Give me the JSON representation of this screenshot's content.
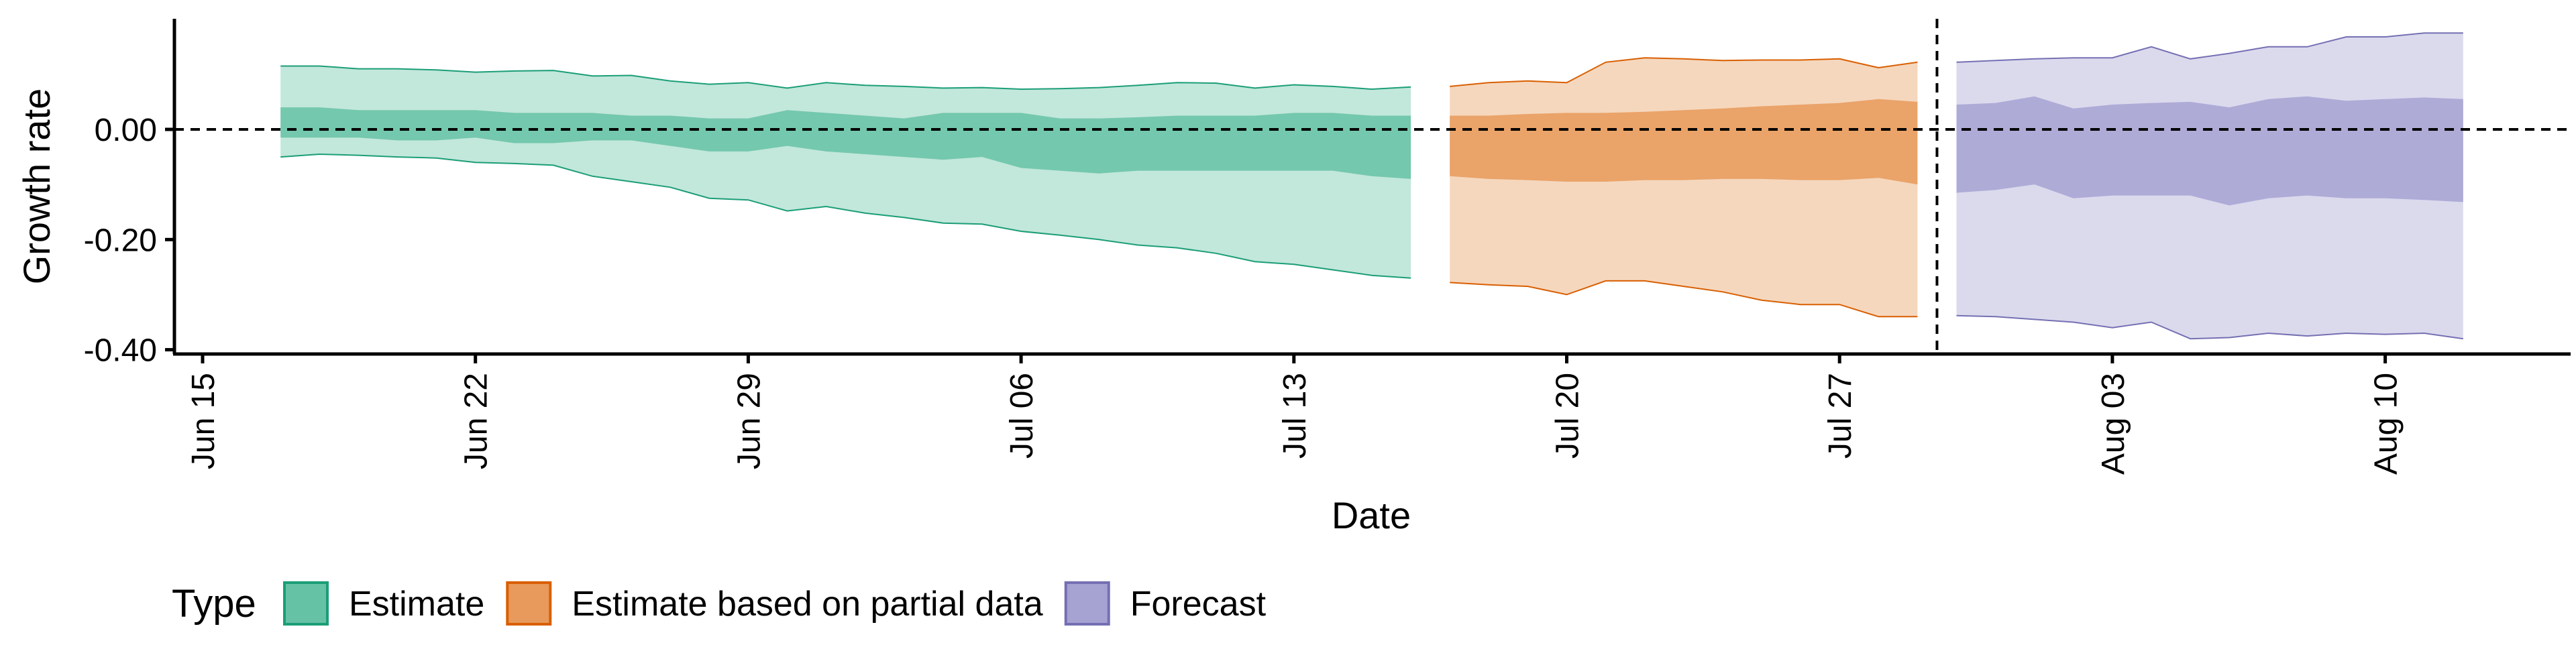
{
  "chart_data": {
    "type": "area",
    "title": "",
    "xlabel": "Date",
    "ylabel": "Growth rate",
    "x_ticks": [
      "Jun 15",
      "Jun 22",
      "Jun 29",
      "Jul 06",
      "Jul 13",
      "Jul 20",
      "Jul 27",
      "Aug 03",
      "Aug 10"
    ],
    "x_range": [
      "2020-06-15",
      "2020-08-17"
    ],
    "y_ticks": [
      "0.00",
      "-0.20",
      "-0.40"
    ],
    "ylim": [
      -0.405,
      0.2
    ],
    "zero_reference_line": 0.0,
    "vertical_reference_line": "2020-07-30",
    "grid": false,
    "legend": {
      "title": "Type",
      "position": "bottom-left"
    },
    "series": [
      {
        "name": "Estimate",
        "color": "#1B9E77",
        "fill_color": "#66C2A5",
        "x": [
          "2020-06-17",
          "2020-06-18",
          "2020-06-19",
          "2020-06-20",
          "2020-06-21",
          "2020-06-22",
          "2020-06-23",
          "2020-06-24",
          "2020-06-25",
          "2020-06-26",
          "2020-06-27",
          "2020-06-28",
          "2020-06-29",
          "2020-06-30",
          "2020-07-01",
          "2020-07-02",
          "2020-07-03",
          "2020-07-04",
          "2020-07-05",
          "2020-07-06",
          "2020-07-07",
          "2020-07-08",
          "2020-07-09",
          "2020-07-10",
          "2020-07-11",
          "2020-07-12",
          "2020-07-13",
          "2020-07-14",
          "2020-07-15",
          "2020-07-16"
        ],
        "outer_upper": [
          0.115,
          0.115,
          0.11,
          0.11,
          0.108,
          0.104,
          0.106,
          0.107,
          0.097,
          0.098,
          0.088,
          0.082,
          0.085,
          0.075,
          0.085,
          0.08,
          0.078,
          0.075,
          0.076,
          0.073,
          0.074,
          0.076,
          0.08,
          0.085,
          0.084,
          0.075,
          0.081,
          0.078,
          0.073,
          0.077
        ],
        "inner_upper": [
          0.04,
          0.04,
          0.035,
          0.035,
          0.035,
          0.035,
          0.03,
          0.03,
          0.03,
          0.025,
          0.025,
          0.02,
          0.02,
          0.035,
          0.03,
          0.025,
          0.02,
          0.03,
          0.03,
          0.03,
          0.02,
          0.02,
          0.022,
          0.025,
          0.025,
          0.025,
          0.03,
          0.03,
          0.025,
          0.025
        ],
        "inner_lower": [
          -0.015,
          -0.015,
          -0.015,
          -0.02,
          -0.02,
          -0.015,
          -0.025,
          -0.025,
          -0.02,
          -0.02,
          -0.03,
          -0.04,
          -0.04,
          -0.03,
          -0.04,
          -0.045,
          -0.05,
          -0.055,
          -0.05,
          -0.07,
          -0.075,
          -0.08,
          -0.075,
          -0.075,
          -0.075,
          -0.075,
          -0.075,
          -0.075,
          -0.085,
          -0.09
        ],
        "outer_lower": [
          -0.05,
          -0.045,
          -0.047,
          -0.05,
          -0.052,
          -0.06,
          -0.062,
          -0.065,
          -0.085,
          -0.095,
          -0.105,
          -0.125,
          -0.128,
          -0.148,
          -0.14,
          -0.152,
          -0.16,
          -0.17,
          -0.172,
          -0.185,
          -0.192,
          -0.2,
          -0.21,
          -0.215,
          -0.225,
          -0.24,
          -0.245,
          -0.255,
          -0.265,
          -0.27
        ]
      },
      {
        "name": "Estimate based on partial data",
        "color": "#D95F02",
        "fill_color": "#E79A5B",
        "x": [
          "2020-07-17",
          "2020-07-18",
          "2020-07-19",
          "2020-07-20",
          "2020-07-21",
          "2020-07-22",
          "2020-07-23",
          "2020-07-24",
          "2020-07-25",
          "2020-07-26",
          "2020-07-27",
          "2020-07-28",
          "2020-07-29"
        ],
        "outer_upper": [
          0.078,
          0.085,
          0.088,
          0.085,
          0.122,
          0.13,
          0.128,
          0.125,
          0.126,
          0.126,
          0.128,
          0.112,
          0.122
        ],
        "inner_upper": [
          0.025,
          0.025,
          0.028,
          0.03,
          0.03,
          0.032,
          0.035,
          0.038,
          0.042,
          0.045,
          0.048,
          0.055,
          0.05
        ],
        "inner_lower": [
          -0.085,
          -0.09,
          -0.092,
          -0.095,
          -0.095,
          -0.092,
          -0.092,
          -0.09,
          -0.09,
          -0.092,
          -0.092,
          -0.088,
          -0.1
        ],
        "outer_lower": [
          -0.278,
          -0.282,
          -0.285,
          -0.3,
          -0.275,
          -0.275,
          -0.285,
          -0.295,
          -0.31,
          -0.318,
          -0.318,
          -0.34,
          -0.34
        ]
      },
      {
        "name": "Forecast",
        "color": "#7570B3",
        "fill_color": "#A6A2D2",
        "x": [
          "2020-07-30",
          "2020-07-31",
          "2020-08-01",
          "2020-08-02",
          "2020-08-03",
          "2020-08-04",
          "2020-08-05",
          "2020-08-06",
          "2020-08-07",
          "2020-08-08",
          "2020-08-09",
          "2020-08-10",
          "2020-08-11",
          "2020-08-12"
        ],
        "outer_upper": [
          0.122,
          0.125,
          0.128,
          0.13,
          0.13,
          0.15,
          0.128,
          0.138,
          0.15,
          0.15,
          0.168,
          0.168,
          0.175,
          0.175
        ],
        "inner_upper": [
          0.045,
          0.048,
          0.06,
          0.038,
          0.045,
          0.048,
          0.05,
          0.04,
          0.055,
          0.06,
          0.052,
          0.055,
          0.058,
          0.055
        ],
        "inner_lower": [
          -0.115,
          -0.11,
          -0.1,
          -0.125,
          -0.12,
          -0.12,
          -0.12,
          -0.138,
          -0.125,
          -0.12,
          -0.125,
          -0.125,
          -0.128,
          -0.132
        ],
        "outer_lower": [
          -0.338,
          -0.34,
          -0.345,
          -0.35,
          -0.36,
          -0.35,
          -0.38,
          -0.378,
          -0.37,
          -0.375,
          -0.37,
          -0.372,
          -0.37,
          -0.38
        ]
      }
    ]
  }
}
